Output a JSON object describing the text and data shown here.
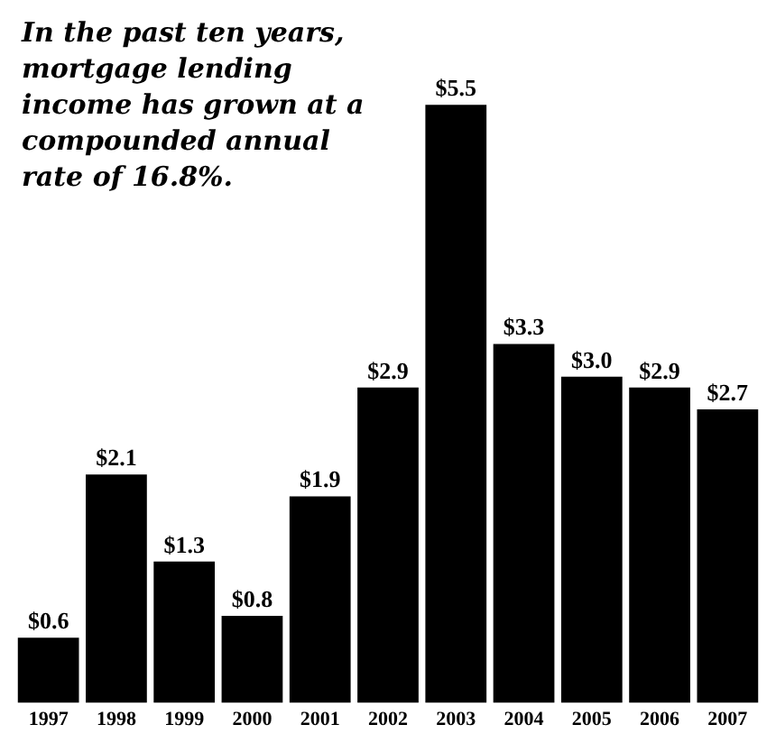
{
  "chart_data": {
    "type": "bar",
    "title": "In the past ten years, mortgage lending income has grown at a compounded annual rate of 16.8%.",
    "categories": [
      "1997",
      "1998",
      "1999",
      "2000",
      "2001",
      "2002",
      "2003",
      "2004",
      "2005",
      "2006",
      "2007"
    ],
    "values": [
      0.6,
      2.1,
      1.3,
      0.8,
      1.9,
      2.9,
      5.5,
      3.3,
      3.0,
      2.9,
      2.7
    ],
    "value_labels": [
      "$0.6",
      "$2.1",
      "$1.3",
      "$0.8",
      "$1.9",
      "$2.9",
      "$5.5",
      "$3.3",
      "$3.0",
      "$2.9",
      "$2.7"
    ],
    "color": "#000000"
  }
}
